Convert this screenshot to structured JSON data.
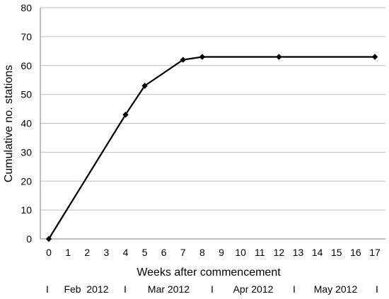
{
  "chart_data": {
    "type": "line",
    "title": "",
    "xlabel": "Weeks after commencement",
    "ylabel": "Cumulative no. stations",
    "ylim": [
      0,
      80
    ],
    "xlim": [
      0,
      17
    ],
    "yticks": [
      0,
      10,
      20,
      30,
      40,
      50,
      60,
      70,
      80
    ],
    "xticks": [
      0,
      1,
      2,
      3,
      4,
      5,
      6,
      7,
      8,
      9,
      10,
      11,
      12,
      13,
      14,
      15,
      16,
      17
    ],
    "grid": true,
    "legend": "none",
    "series": [
      {
        "x": [
          0,
          4,
          5,
          7,
          8,
          12,
          17
        ],
        "y": [
          0,
          43,
          53,
          62,
          63,
          63,
          63
        ],
        "color": "#000000",
        "marker": "diamond"
      }
    ],
    "month_axis": {
      "separator": "I",
      "labels": [
        "Feb  2012",
        "Mar 2012",
        "Apr 2012",
        "May 2012"
      ]
    }
  }
}
